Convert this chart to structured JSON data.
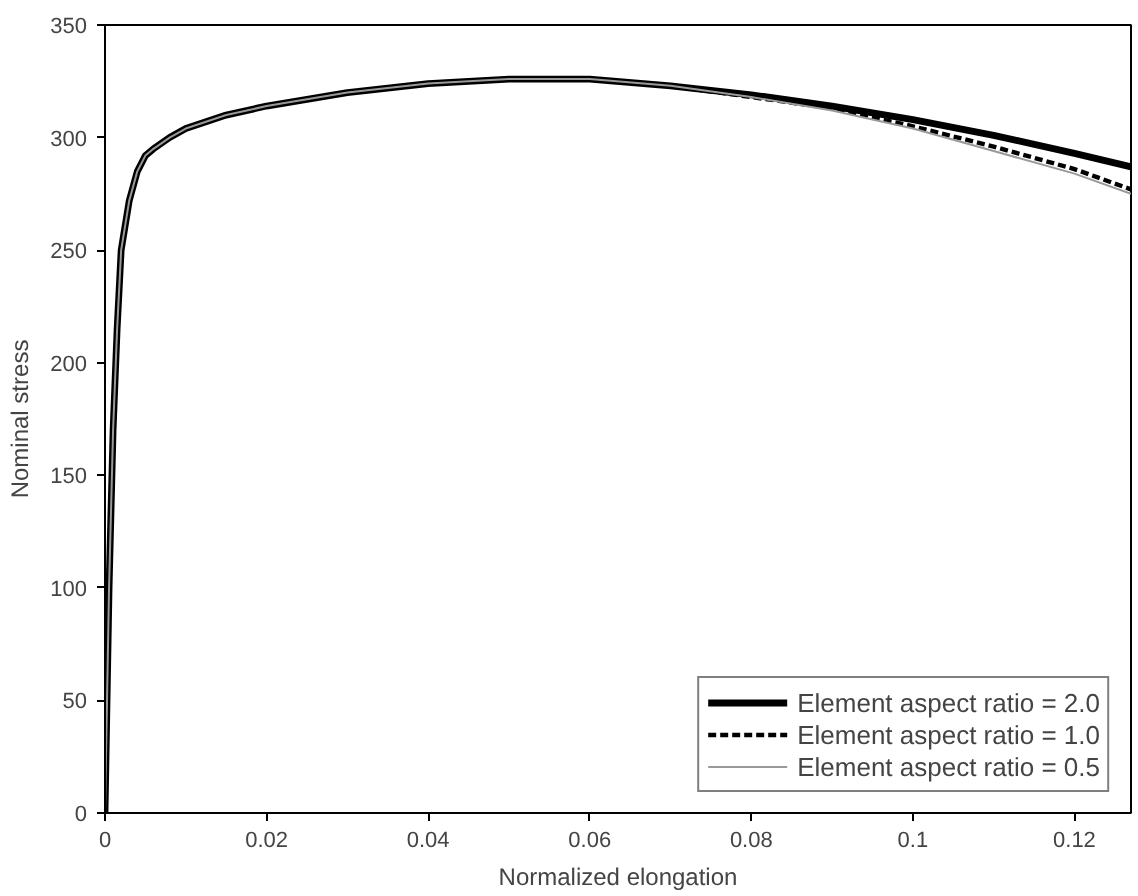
{
  "chart_data": {
    "type": "line",
    "xlabel": "Normalized elongation",
    "ylabel": "Nominal stress",
    "xlim": [
      0,
      0.127
    ],
    "ylim": [
      0,
      350
    ],
    "xticks": [
      0,
      0.02,
      0.04,
      0.06,
      0.08,
      0.1,
      0.12
    ],
    "yticks": [
      0,
      50,
      100,
      150,
      200,
      250,
      300,
      350
    ],
    "grid": false,
    "legend": "bottom right",
    "marker": "none",
    "x": [
      0,
      0.0005,
      0.001,
      0.0015,
      0.002,
      0.003,
      0.004,
      0.005,
      0.006,
      0.008,
      0.01,
      0.015,
      0.02,
      0.03,
      0.04,
      0.05,
      0.06,
      0.07,
      0.08,
      0.09,
      0.1,
      0.11,
      0.12,
      0.127
    ],
    "series": [
      {
        "name": "Element aspect ratio = 2.0",
        "color": "#000000",
        "line_style": "solid",
        "values": [
          0,
          100,
          170,
          215,
          250,
          272,
          285,
          292,
          295,
          300,
          304,
          310,
          314,
          320,
          324,
          326,
          326,
          323,
          319,
          314,
          308,
          301,
          293,
          287
        ]
      },
      {
        "name": "Element aspect ratio = 1.0",
        "color": "#000000",
        "line_style": "dashed",
        "values": [
          0,
          100,
          170,
          215,
          250,
          272,
          285,
          292,
          295,
          300,
          304,
          310,
          314,
          320,
          324,
          326,
          326,
          323,
          318,
          313,
          305,
          296,
          286,
          277
        ]
      },
      {
        "name": "Element aspect ratio = 0.5",
        "color": "#999999",
        "line_style": "solid",
        "values": [
          0,
          100,
          170,
          215,
          250,
          272,
          285,
          292,
          295,
          300,
          304,
          310,
          314,
          320,
          324,
          326,
          326,
          323,
          318,
          312,
          304,
          294,
          284,
          275
        ]
      }
    ]
  }
}
